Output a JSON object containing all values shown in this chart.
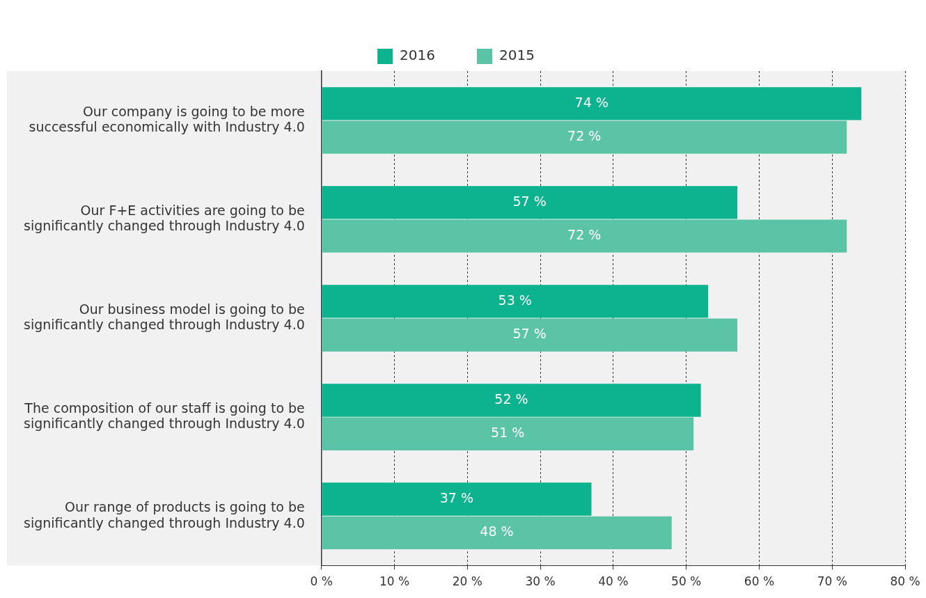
{
  "chart_data": {
    "type": "bar",
    "orientation": "horizontal",
    "categories": [
      "Our company is going to be more successful economically with Industry 4.0",
      "Our F+E activities are going to be significantly changed through Industry 4.0",
      "Our business model is going to be significantly changed through Industry 4.0",
      "The composition of our staff is going to be significantly changed through Industry 4.0",
      "Our range of products is going to be significantly changed through Industry 4.0"
    ],
    "series": [
      {
        "name": "2016",
        "color": "#0db38f",
        "values": [
          74,
          57,
          53,
          52,
          37
        ],
        "value_labels": [
          "74 %",
          "57 %",
          "53 %",
          "52 %",
          "37 %"
        ]
      },
      {
        "name": "2015",
        "color": "#5cc4a6",
        "values": [
          72,
          72,
          57,
          51,
          48
        ],
        "value_labels": [
          "72 %",
          "72 %",
          "57 %",
          "51 %",
          "48 %"
        ]
      }
    ],
    "xlim": [
      0,
      80
    ],
    "xticks": [
      {
        "value": 0,
        "label": "0 %"
      },
      {
        "value": 10,
        "label": "10 %"
      },
      {
        "value": 20,
        "label": "20 %"
      },
      {
        "value": 30,
        "label": "30 %"
      },
      {
        "value": 40,
        "label": "40 %"
      },
      {
        "value": 50,
        "label": "50 %"
      },
      {
        "value": 60,
        "label": "60 %"
      },
      {
        "value": 70,
        "label": "70 %"
      },
      {
        "value": 80,
        "label": "80 %"
      }
    ],
    "grid": "x",
    "legend": "top"
  }
}
